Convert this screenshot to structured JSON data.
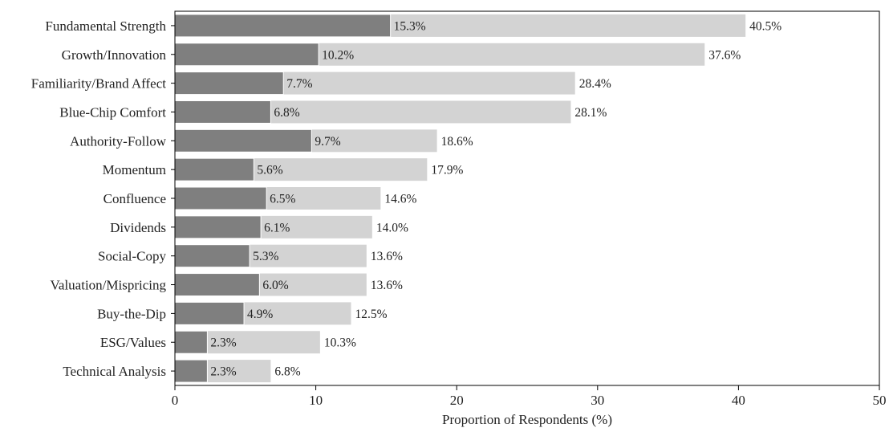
{
  "chart_data": {
    "type": "bar",
    "orientation": "horizontal",
    "layout": "overlaid",
    "categories": [
      "Fundamental Strength",
      "Growth/Innovation",
      "Familiarity/Brand Affect",
      "Blue-Chip Comfort",
      "Authority-Follow",
      "Momentum",
      "Confluence",
      "Dividends",
      "Social-Copy",
      "Valuation/Mispricing",
      "Buy-the-Dip",
      "ESG/Values",
      "Technical Analysis"
    ],
    "series": [
      {
        "values": [
          40.5,
          37.6,
          28.4,
          28.1,
          18.6,
          17.9,
          14.6,
          14.0,
          13.6,
          13.6,
          12.5,
          10.3,
          6.8
        ],
        "labels": [
          "40.5%",
          "37.6%",
          "28.4%",
          "28.1%",
          "18.6%",
          "17.9%",
          "14.6%",
          "14.0%",
          "13.6%",
          "13.6%",
          "12.5%",
          "10.3%",
          "6.8%"
        ],
        "color": "#d3d3d3"
      },
      {
        "values": [
          15.3,
          10.2,
          7.7,
          6.8,
          9.7,
          5.6,
          6.5,
          6.1,
          5.3,
          6.0,
          4.9,
          2.3,
          2.3
        ],
        "labels": [
          "15.3%",
          "10.2%",
          "7.7%",
          "6.8%",
          "9.7%",
          "5.6%",
          "6.5%",
          "6.1%",
          "5.3%",
          "6.0%",
          "4.9%",
          "2.3%",
          "2.3%"
        ],
        "color": "#7f7f7f"
      }
    ],
    "xlabel": "Proportion of Respondents (%)",
    "xlim": [
      0,
      50
    ],
    "xticks": [
      0,
      10,
      20,
      30,
      40,
      50
    ],
    "xtick_labels": [
      "0",
      "10",
      "20",
      "30",
      "40",
      "50"
    ],
    "grid": false,
    "legend": "none"
  }
}
